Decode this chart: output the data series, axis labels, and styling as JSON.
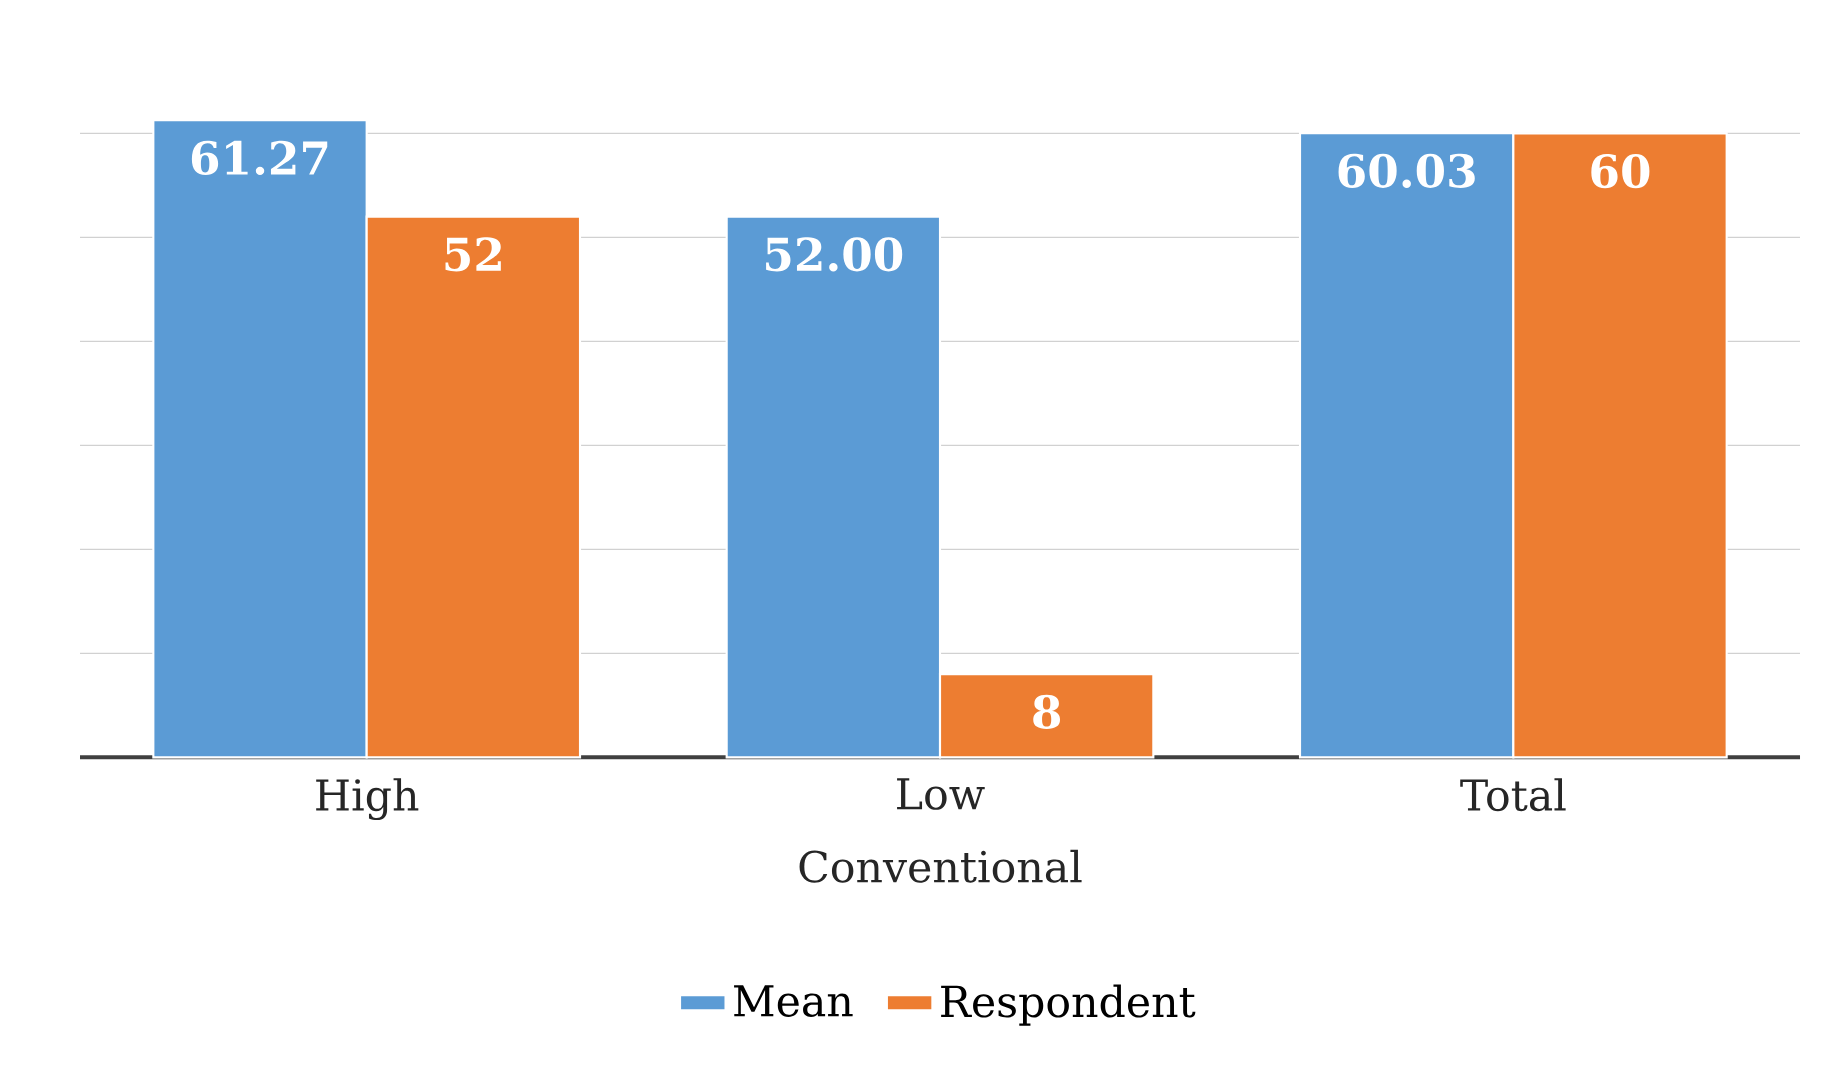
{
  "chart_data": {
    "type": "bar",
    "xlabel": "Conventional",
    "categories": [
      "High",
      "Low",
      "Total"
    ],
    "series": [
      {
        "name": "Mean",
        "color": "#5b9bd5",
        "values": [
          61.27,
          52,
          60.03
        ],
        "value_labels": [
          "61.27",
          "52.00",
          "60.03"
        ]
      },
      {
        "name": "Respondent",
        "color": "#ed7d31",
        "values": [
          52,
          8,
          60
        ],
        "value_labels": [
          "52",
          "8",
          "60"
        ]
      }
    ],
    "tick_labels": "x",
    "grid": "y",
    "legend": "bottom"
  }
}
